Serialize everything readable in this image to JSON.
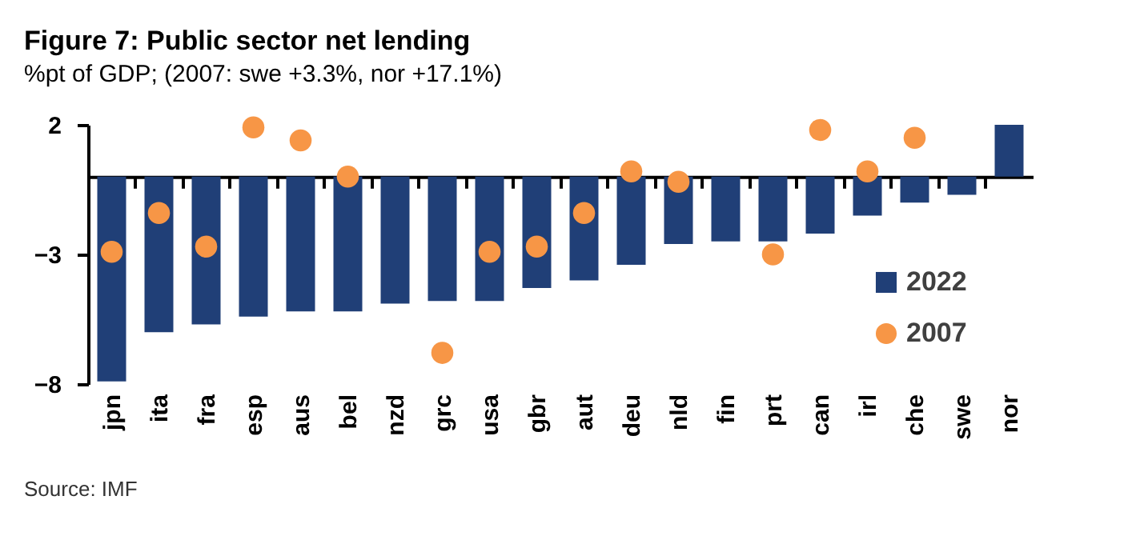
{
  "chart_data": {
    "type": "bar",
    "title": "Figure 7: Public sector net lending",
    "subtitle": "%pt of GDP; (2007: swe +3.3%, nor +17.1%)",
    "categories": [
      "jpn",
      "ita",
      "fra",
      "esp",
      "aus",
      "bel",
      "nzd",
      "grc",
      "usa",
      "gbr",
      "aut",
      "deu",
      "nld",
      "fin",
      "prt",
      "can",
      "irl",
      "che",
      "swe",
      "nor"
    ],
    "series": [
      {
        "name": "2022",
        "color": "#203f77",
        "values": [
          -7.9,
          -6.0,
          -5.7,
          -5.4,
          -5.2,
          -5.2,
          -4.9,
          -4.8,
          -4.8,
          -4.3,
          -4.0,
          -3.4,
          -2.6,
          -2.5,
          -2.5,
          -2.2,
          -1.5,
          -1.0,
          -0.7,
          2.0
        ]
      },
      {
        "name": "2007",
        "type": "scatter",
        "color": "#f79646",
        "marker": "circle",
        "values": [
          -2.9,
          -1.4,
          -2.7,
          1.9,
          1.4,
          0.0,
          null,
          -6.8,
          -2.9,
          -2.7,
          -1.4,
          0.2,
          -0.2,
          null,
          -3.0,
          1.8,
          0.2,
          1.5,
          null,
          null
        ]
      }
    ],
    "ylim": [
      -8,
      2
    ],
    "yticks": [
      2,
      -3,
      -8
    ],
    "grid": false,
    "legend": "bottom right",
    "annotations": [
      "Source: IMF"
    ]
  }
}
